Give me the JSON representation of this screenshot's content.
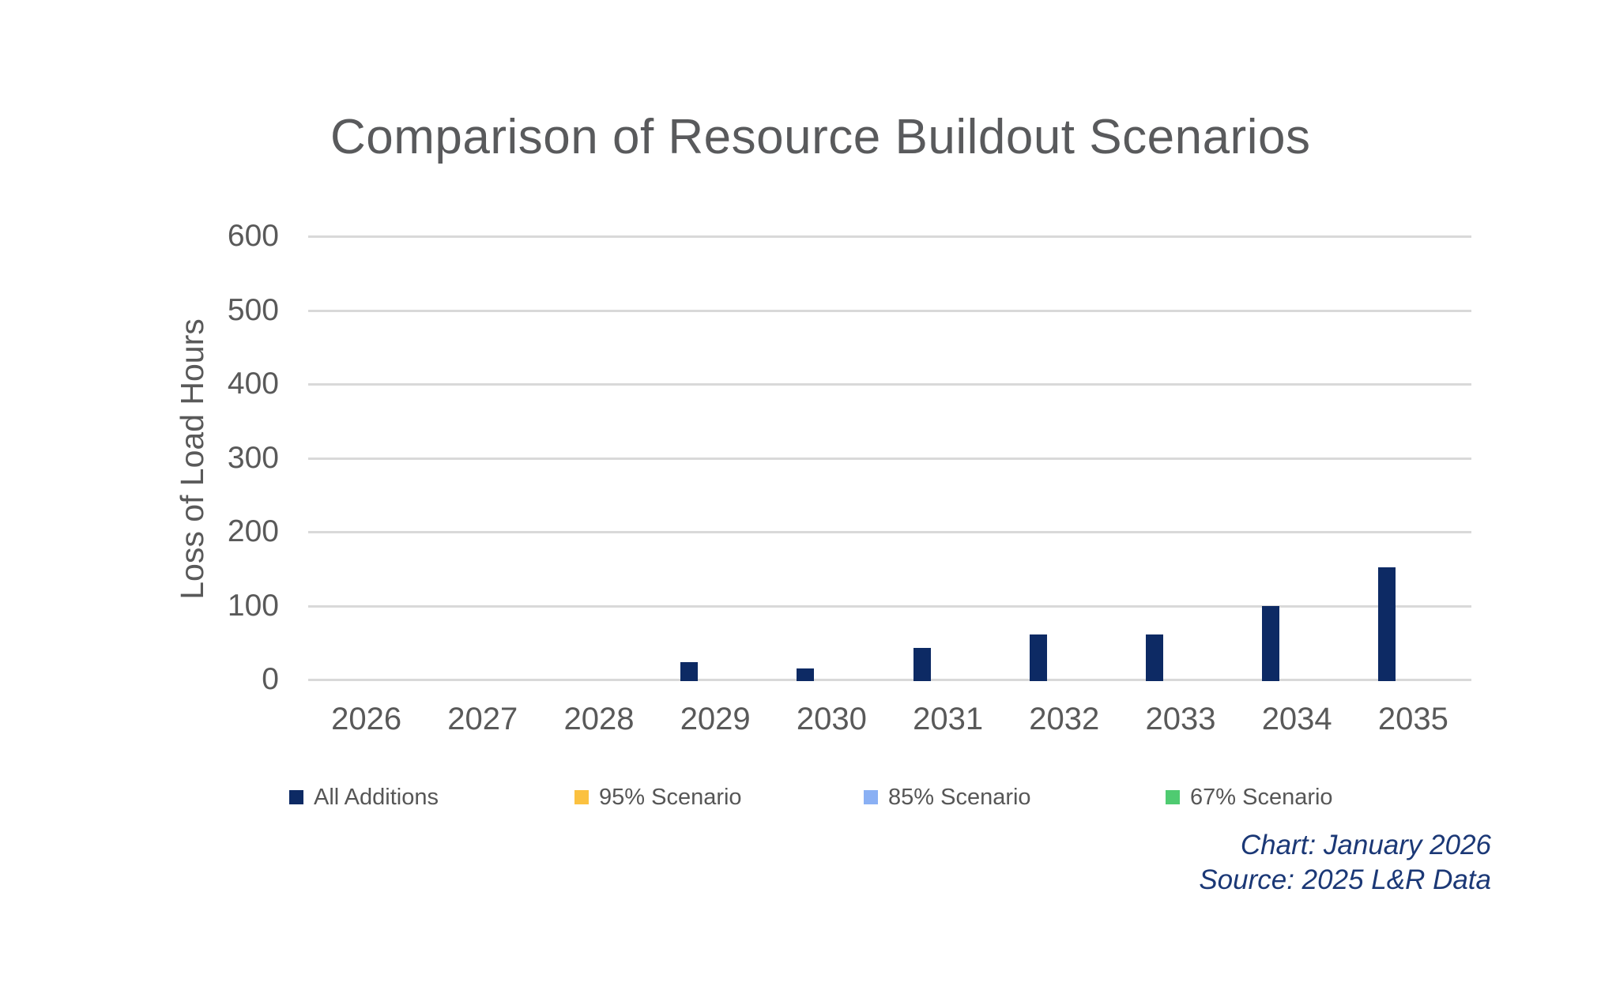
{
  "chart_data": {
    "type": "bar",
    "title": "Comparison of Resource Buildout Scenarios",
    "xlabel": "",
    "ylabel": "Loss of Load Hours",
    "categories": [
      "2026",
      "2027",
      "2028",
      "2029",
      "2030",
      "2031",
      "2032",
      "2033",
      "2034",
      "2035"
    ],
    "series": [
      {
        "name": "All Additions",
        "color": "#0d2a64",
        "values": [
          0,
          0,
          0,
          23,
          15,
          43,
          61,
          61,
          100,
          152
        ]
      },
      {
        "name": "95% Scenario",
        "color": "#fbc140",
        "values": [
          0,
          0,
          0,
          0,
          0,
          0,
          0,
          0,
          0,
          0
        ]
      },
      {
        "name": "85% Scenario",
        "color": "#8ab0f4",
        "values": [
          0,
          0,
          0,
          0,
          0,
          0,
          0,
          0,
          0,
          0
        ]
      },
      {
        "name": "67% Scenario",
        "color": "#4fcb71",
        "values": [
          0,
          0,
          0,
          0,
          0,
          0,
          0,
          0,
          0,
          0
        ]
      }
    ],
    "ylim": [
      0,
      600
    ],
    "yticks": [
      0,
      100,
      200,
      300,
      400,
      500,
      600
    ],
    "grid": "horizontal",
    "legend_position": "bottom",
    "annotations": [
      "Chart: January 2026",
      "Source: 2025 L&R Data"
    ]
  },
  "colors": {
    "gridline": "#d9d9d9",
    "axis_text": "#595959",
    "title_text": "#595a5c",
    "footnote_text": "#1b3876",
    "background": "#ffffff"
  }
}
